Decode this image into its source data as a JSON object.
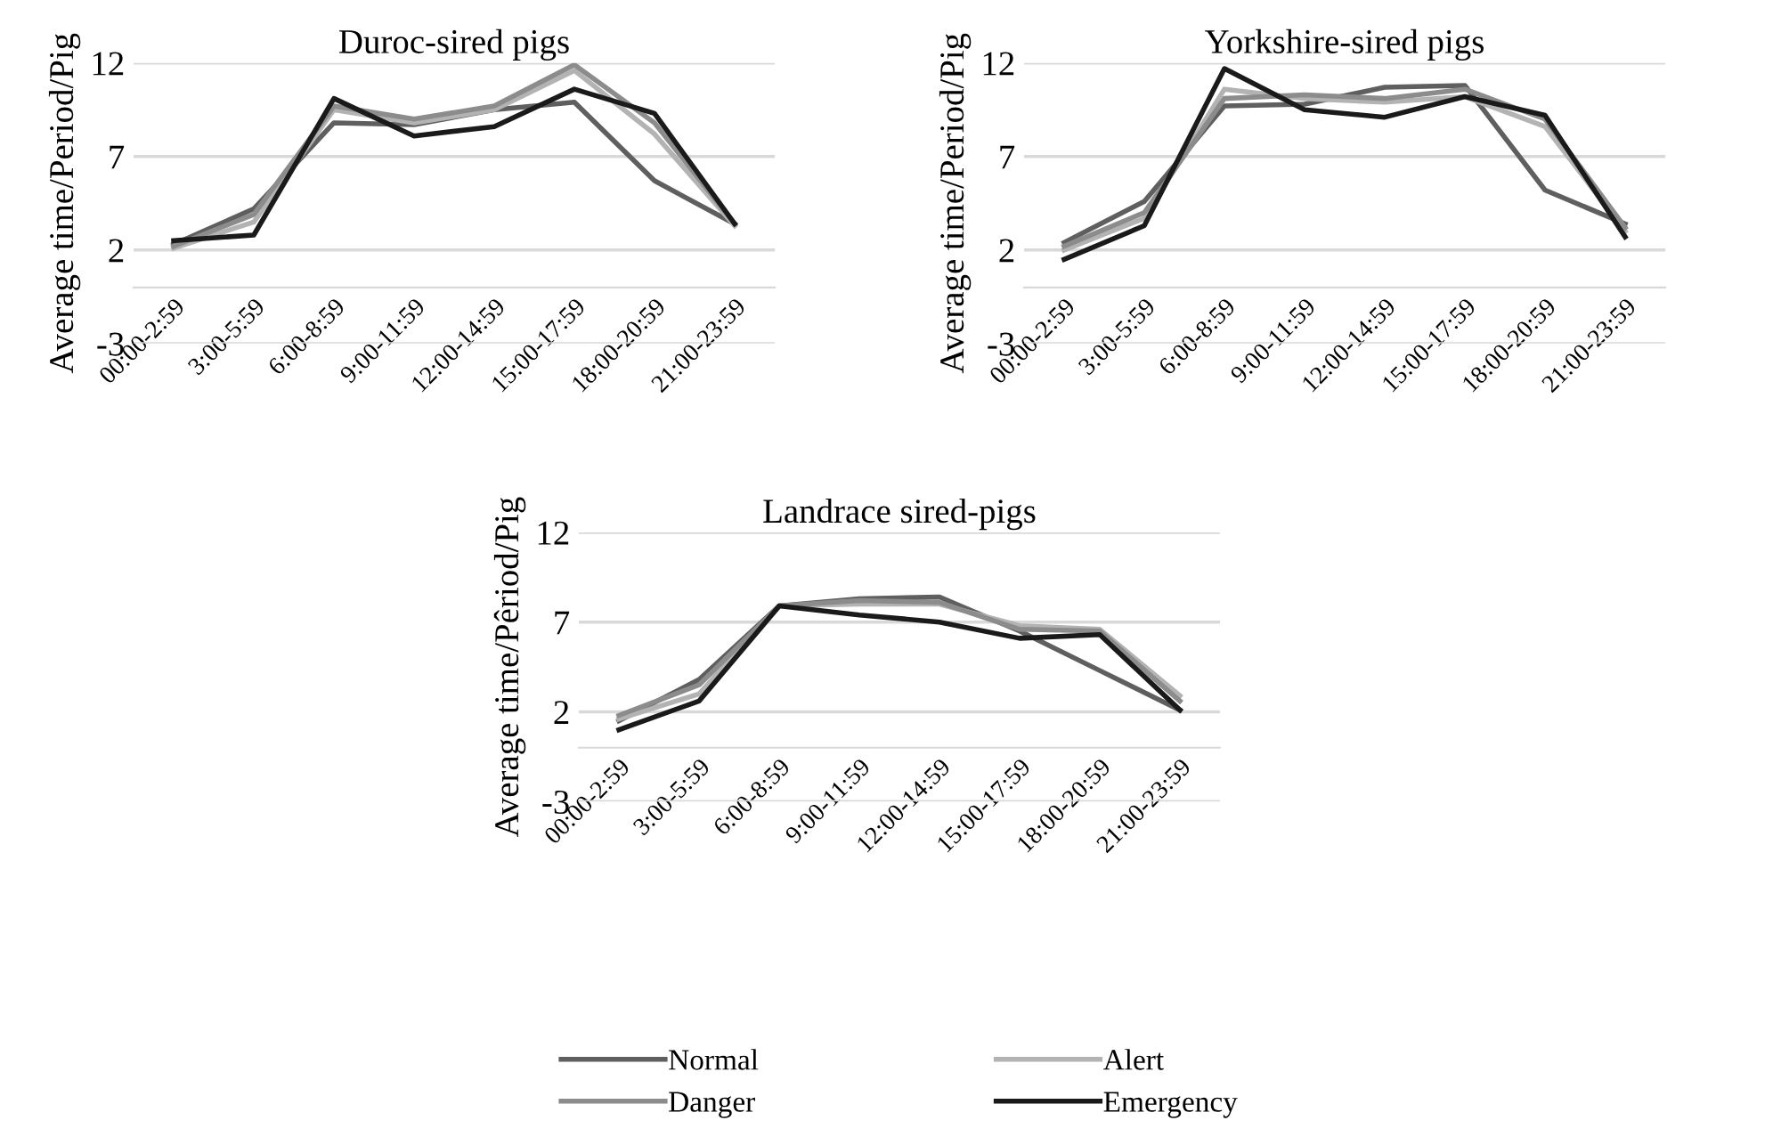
{
  "chart_data": [
    {
      "type": "line",
      "title": "Duroc-sired pigs",
      "ylabel": "Average time/Period/Pig",
      "categories": [
        "00:00-2:59",
        "3:00-5:59",
        "6:00-8:59",
        "9:00-11:59",
        "12:00-14:59",
        "15:00-17:59",
        "18:00-20:59",
        "21:00-23:59"
      ],
      "ylim": [
        -3,
        12
      ],
      "yticks": [
        -3,
        2,
        7,
        12
      ],
      "grid": "y",
      "series": [
        {
          "color": "#5f5f5f",
          "values": [
            2.3,
            4.2,
            8.8,
            8.7,
            9.5,
            9.9,
            5.7,
            3.4
          ]
        },
        {
          "color": "#b3b3b3",
          "values": [
            2.1,
            3.5,
            9.5,
            8.8,
            9.5,
            11.6,
            8.2,
            3.3
          ]
        },
        {
          "color": "#8c8c8c",
          "values": [
            2.2,
            3.9,
            9.7,
            9.0,
            9.7,
            11.9,
            8.8,
            3.4
          ]
        },
        {
          "color": "#1a1a1a",
          "values": [
            2.5,
            2.8,
            10.1,
            8.1,
            8.6,
            10.6,
            9.3,
            3.4
          ]
        }
      ]
    },
    {
      "type": "line",
      "title": "Yorkshire-sired pigs",
      "ylabel": "Average time/Period/Pig",
      "categories": [
        "00:00-2:59",
        "3:00-5:59",
        "6:00-8:59",
        "9:00-11:59",
        "12:00-14:59",
        "15:00-17:59",
        "18:00-20:59",
        "21:00-23:59"
      ],
      "ylim": [
        -3,
        12
      ],
      "yticks": [
        -3,
        2,
        7,
        12
      ],
      "grid": "y",
      "series": [
        {
          "color": "#5f5f5f",
          "values": [
            2.4,
            4.6,
            9.7,
            9.8,
            10.7,
            10.8,
            5.2,
            3.4
          ]
        },
        {
          "color": "#b3b3b3",
          "values": [
            2.0,
            3.7,
            10.6,
            10.1,
            9.9,
            10.2,
            8.6,
            3.0
          ]
        },
        {
          "color": "#8c8c8c",
          "values": [
            2.2,
            4.0,
            10.1,
            10.3,
            10.1,
            10.6,
            9.0,
            3.2
          ]
        },
        {
          "color": "#1a1a1a",
          "values": [
            1.5,
            3.3,
            11.7,
            9.5,
            9.1,
            10.2,
            9.2,
            2.7
          ]
        }
      ]
    },
    {
      "type": "line",
      "title": "Landrace sired-pigs",
      "ylabel": "Average time/Pêriod/Pig",
      "categories": [
        "00:00-2:59",
        "3:00-5:59",
        "6:00-8:59",
        "9:00-11:59",
        "12:00-14:59",
        "15:00-17:59",
        "18:00-20:59",
        "21:00-23:59"
      ],
      "ylim": [
        -3,
        12
      ],
      "yticks": [
        -3,
        2,
        7,
        12
      ],
      "grid": "y",
      "legend": "bottom",
      "series": [
        {
          "name": "Normal",
          "color": "#5f5f5f",
          "values": [
            1.5,
            3.8,
            7.9,
            8.3,
            8.4,
            6.5,
            4.3,
            2.1
          ]
        },
        {
          "name": "Alert",
          "color": "#b3b3b3",
          "values": [
            1.6,
            3.0,
            7.9,
            8.0,
            8.0,
            6.8,
            6.6,
            2.9
          ]
        },
        {
          "name": "Danger",
          "color": "#8c8c8c",
          "values": [
            1.8,
            3.5,
            7.9,
            8.2,
            8.1,
            6.6,
            6.5,
            2.6
          ]
        },
        {
          "name": "Emergency",
          "color": "#1a1a1a",
          "values": [
            1.0,
            2.6,
            7.9,
            7.4,
            7.0,
            6.1,
            6.3,
            2.1
          ]
        }
      ]
    }
  ]
}
